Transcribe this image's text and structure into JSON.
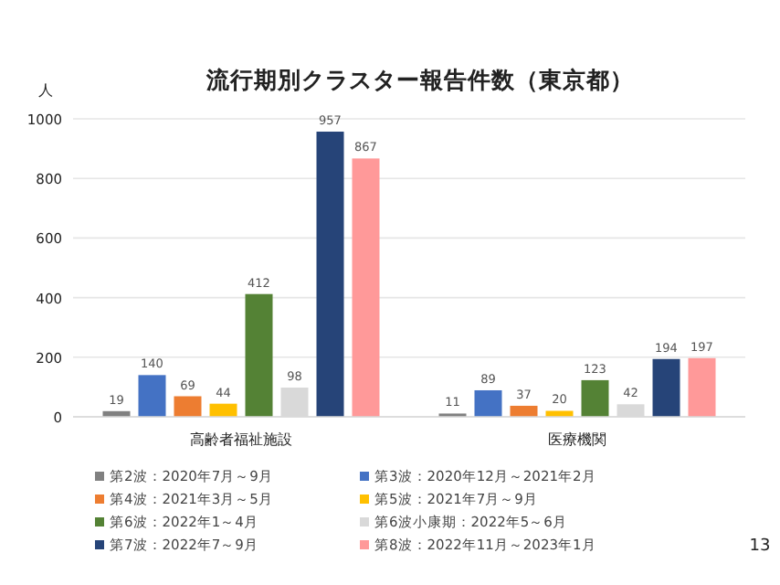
{
  "chart_data": {
    "type": "bar",
    "title": "流行期別クラスター報告件数（東京都）",
    "ylabel": "人",
    "categories": [
      "高齢者福祉施設",
      "医療機関"
    ],
    "series": [
      {
        "name": "第2波：2020年7月～9月",
        "color": "#808080",
        "values": [
          19,
          11
        ]
      },
      {
        "name": "第3波：2020年12月～2021年2月",
        "color": "#4472c4",
        "values": [
          140,
          89
        ]
      },
      {
        "name": "第4波：2021年3月～5月",
        "color": "#ed7d31",
        "values": [
          69,
          37
        ]
      },
      {
        "name": "第5波：2021年7月～9月",
        "color": "#ffc000",
        "values": [
          44,
          20
        ]
      },
      {
        "name": "第6波：2022年1～4月",
        "color": "#548235",
        "values": [
          412,
          123
        ]
      },
      {
        "name": "第6波小康期：2022年5～6月",
        "color": "#d9d9d9",
        "values": [
          98,
          42
        ]
      },
      {
        "name": "第7波：2022年7～9月",
        "color": "#264478",
        "values": [
          957,
          194
        ]
      },
      {
        "name": "第8波：2022年11月～2023年1月",
        "color": "#ff9999",
        "values": [
          867,
          197
        ]
      }
    ],
    "ylim": [
      0,
      1000
    ],
    "yticks": [
      0,
      200,
      400,
      600,
      800,
      1000
    ],
    "grid": "y",
    "data_labels": true,
    "legend": "bottom",
    "annotations": [
      "13"
    ]
  }
}
